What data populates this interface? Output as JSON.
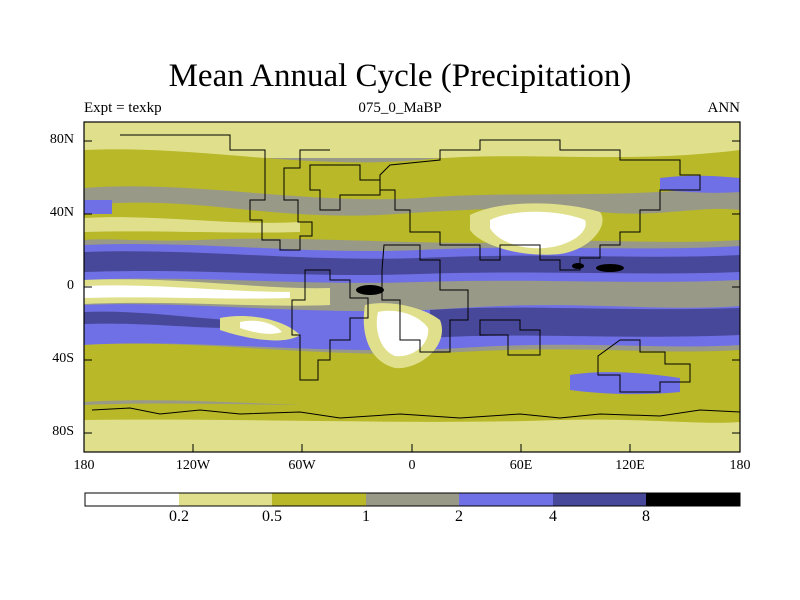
{
  "title": "Mean Annual Cycle (Precipitation)",
  "subtitle_left": "Expt = texkp",
  "subtitle_center": "075_0_MaBP",
  "subtitle_right": "ANN",
  "lat_labels": [
    "80N",
    "40N",
    "0",
    "40S",
    "80S"
  ],
  "lon_labels": [
    "180",
    "120W",
    "60W",
    "0",
    "60E",
    "120E",
    "180"
  ],
  "colorbar": {
    "colors": [
      "#ffffff",
      "#e0e08c",
      "#b8b828",
      "#999988",
      "#7070e6",
      "#48489a",
      "#000000"
    ],
    "labels": [
      "0.2",
      "0.5",
      "1",
      "2",
      "4",
      "8"
    ]
  }
}
